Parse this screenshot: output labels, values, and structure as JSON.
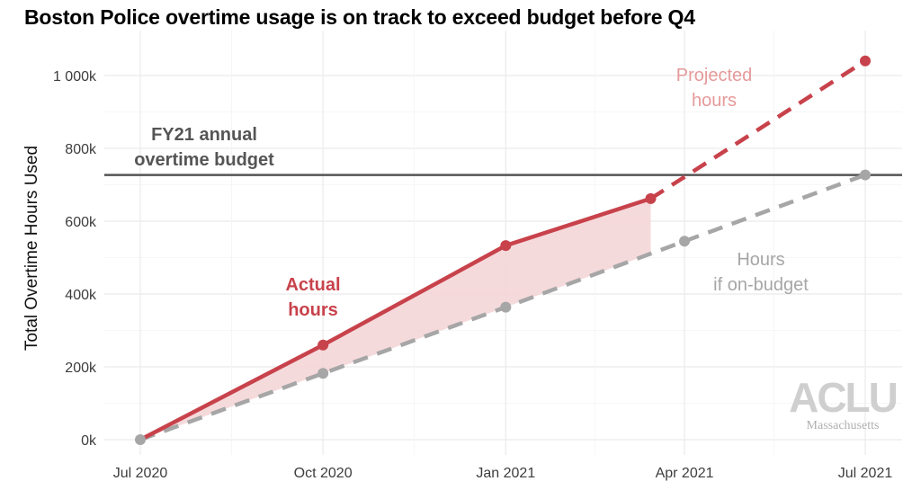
{
  "chart_data": {
    "type": "line",
    "title": "Boston Police overtime usage is on track to exceed budget before Q4",
    "ylabel": "Total Overtime Hours Used",
    "xlabel": "",
    "ylim": [
      0,
      1050000
    ],
    "grid": true,
    "x_ticks": [
      "Jul 2020",
      "Oct 2020",
      "Jan 2021",
      "Apr 2021",
      "Jul 2021"
    ],
    "y_ticks": [
      "0k",
      "200k",
      "400k",
      "600k",
      "800k",
      "1 000k"
    ],
    "y_tick_values": [
      0,
      200000,
      400000,
      600000,
      800000,
      1000000
    ],
    "budget": {
      "label": "FY21 annual overtime budget",
      "label_lines": [
        "FY21 annual",
        "overtime budget"
      ],
      "value": 727000
    },
    "series": [
      {
        "name": "Actual hours",
        "label_lines": [
          "Actual",
          "hours"
        ],
        "color": "#c8424b",
        "style": "solid",
        "x": [
          "2020-07-01",
          "2020-10-01",
          "2021-01-01",
          "2021-03-15"
        ],
        "values": [
          0,
          260000,
          533000,
          662000
        ]
      },
      {
        "name": "Projected hours",
        "label_lines": [
          "Projected",
          "hours"
        ],
        "color": "#c8424b",
        "style": "dashed",
        "x": [
          "2021-03-15",
          "2021-07-01"
        ],
        "values": [
          662000,
          1040000
        ]
      },
      {
        "name": "Hours if on-budget",
        "label_lines": [
          "Hours",
          "if on-budget"
        ],
        "color": "#a6a6a6",
        "style": "dashed",
        "x": [
          "2020-07-01",
          "2020-10-01",
          "2021-01-01",
          "2021-04-01",
          "2021-07-01"
        ],
        "values": [
          0,
          182000,
          364000,
          545000,
          727000
        ]
      }
    ],
    "gap_shading": {
      "from": "2020-07-01",
      "to": "2021-03-15",
      "color": "#f3d3d6"
    }
  },
  "logo": {
    "text": "ACLU",
    "subtext": "Massachusetts"
  }
}
